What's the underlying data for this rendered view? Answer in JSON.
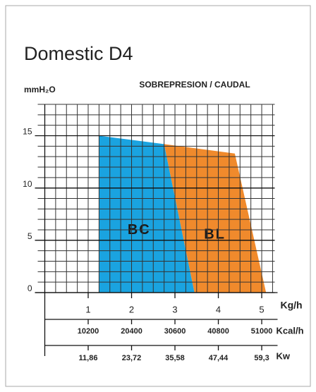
{
  "chart_data": {
    "type": "area",
    "title": "Domestic D4",
    "subtitle": "SOBREPRESION / CAUDAL",
    "ylabel": "mmH₂O",
    "xlabel": "Kg/h",
    "xlim": [
      0,
      5.3
    ],
    "xticks": [
      1,
      2,
      3,
      4,
      5
    ],
    "ylim": [
      0,
      18
    ],
    "yticks": [
      0,
      5,
      10,
      15
    ],
    "minor_grid": {
      "x": 0.25,
      "y": 1
    },
    "grid": true,
    "secondary_axes": [
      {
        "label": "Kcal/h",
        "lim": [
          0,
          54060
        ],
        "ticks": [
          10200,
          20400,
          30600,
          40800,
          51000
        ]
      },
      {
        "label": "Kw",
        "lim": [
          0,
          62.858
        ],
        "ticks": [
          {
            "value": 11.86,
            "label": "11,86"
          },
          {
            "value": 23.72,
            "label": "23,72"
          },
          {
            "value": 35.58,
            "label": "35,58"
          },
          {
            "value": 47.44,
            "label": "47,44"
          },
          {
            "value": 59.3,
            "label": "59,3"
          }
        ]
      }
    ],
    "series": [
      {
        "name": "BC",
        "color": "#1aa3e0",
        "x": [
          1.25,
          2.75,
          3.45,
          1.25
        ],
        "y": [
          15,
          14.2,
          0,
          0
        ]
      },
      {
        "name": "BL",
        "color": "#f08a2c",
        "x": [
          2.75,
          4.38,
          5.1,
          3.45
        ],
        "y": [
          14.2,
          13.3,
          0,
          0
        ]
      }
    ]
  }
}
